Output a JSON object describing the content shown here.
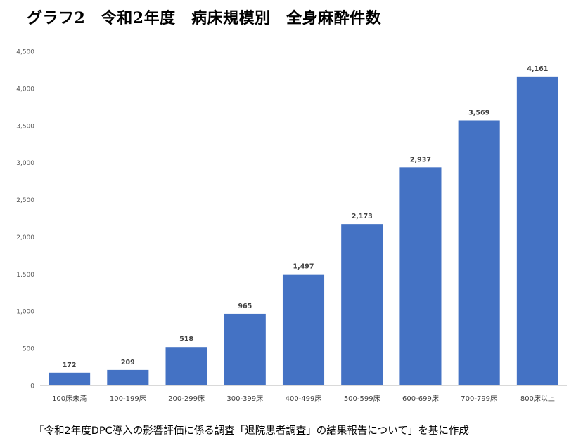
{
  "title": "グラフ2　令和2年度　病床規模別　全身麻酔件数",
  "source_note": "「令和2年度DPC導入の影響評価に係る調査「退院患者調査」の結果報告について」を基に作成",
  "chart_data": {
    "type": "bar",
    "categories": [
      "100床未満",
      "100-199床",
      "200-299床",
      "300-399床",
      "400-499床",
      "500-599床",
      "600-699床",
      "700-799床",
      "800床以上"
    ],
    "values": [
      172,
      209,
      518,
      965,
      1497,
      2173,
      2937,
      3569,
      4161
    ],
    "value_labels": [
      "172",
      "209",
      "518",
      "965",
      "1,497",
      "2,173",
      "2,937",
      "3,569",
      "4,161"
    ],
    "ylim": [
      0,
      4500
    ],
    "yticks": [
      0,
      500,
      1000,
      1500,
      2000,
      2500,
      3000,
      3500,
      4000,
      4500
    ],
    "ytick_labels": [
      "0",
      "500",
      "1,000",
      "1,500",
      "2,000",
      "2,500",
      "3,000",
      "3,500",
      "4,000",
      "4,500"
    ],
    "grid": false,
    "legend": "none",
    "bar_color": "#4472c4",
    "axis_color": "#d9d9d9",
    "label_color": "#404040"
  }
}
